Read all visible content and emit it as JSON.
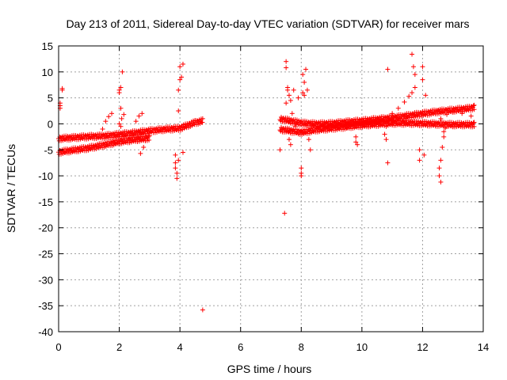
{
  "chart_data": {
    "type": "scatter",
    "title": "Day 213 of 2011, Sidereal Day-to-day VTEC variation (SDTVAR) for receiver mars",
    "xlabel": "GPS time / hours",
    "ylabel": "SDTVAR / TECUs",
    "xlim": [
      0,
      14
    ],
    "ylim": [
      -40,
      15
    ],
    "xticks": [
      0,
      2,
      4,
      6,
      8,
      10,
      12,
      14
    ],
    "yticks": [
      -40,
      -35,
      -30,
      -25,
      -20,
      -15,
      -10,
      -5,
      0,
      5,
      10,
      15
    ],
    "grid": true,
    "marker": "plus",
    "color": "#ff0000",
    "series": [
      {
        "name": "segment-1-band-upper",
        "x": [
          0.0,
          0.5,
          1.0,
          1.5,
          2.0,
          2.5,
          3.0,
          3.5,
          4.0,
          4.5,
          4.75
        ],
        "y": [
          -2.4,
          -2.2,
          -2.0,
          -1.9,
          -1.6,
          -1.3,
          -0.9,
          -0.6,
          -0.4,
          0.7,
          1.0
        ]
      },
      {
        "name": "segment-1-band-lower",
        "x": [
          0.0,
          0.5,
          1.0,
          1.5,
          2.0,
          2.5,
          3.0
        ],
        "y": [
          -5.0,
          -4.6,
          -4.2,
          -3.6,
          -3.0,
          -2.6,
          -2.3
        ]
      },
      {
        "name": "segment-1-arcs",
        "x": [
          1.45,
          1.55,
          1.65,
          1.75,
          2.0,
          2.08,
          2.15,
          2.55,
          2.65,
          2.75
        ],
        "y": [
          -1.0,
          0.5,
          1.4,
          2.0,
          0.0,
          1.0,
          1.8,
          0.5,
          1.5,
          2.0
        ]
      },
      {
        "name": "segment-1-scattered",
        "x": [
          0.05,
          0.05,
          0.05,
          0.12,
          0.12,
          2.0,
          2.0,
          2.05,
          2.05,
          2.05,
          2.1,
          2.8,
          2.7,
          3.85,
          3.85,
          3.85,
          3.9,
          3.9,
          3.95,
          3.95,
          3.95,
          4.0,
          4.05,
          4.0,
          4.1,
          4.1,
          4.75
        ],
        "y": [
          3.0,
          3.5,
          4.0,
          6.5,
          6.8,
          6.0,
          6.5,
          7.0,
          3.0,
          -0.5,
          10.0,
          -4.5,
          -5.7,
          -6.0,
          -7.5,
          -8.5,
          -9.5,
          -10.5,
          -7.0,
          2.5,
          6.5,
          8.5,
          9.0,
          11.0,
          11.5,
          -5.5,
          -35.8
        ]
      },
      {
        "name": "segment-2-band-upper",
        "x": [
          7.3,
          8.0,
          8.5,
          9.0,
          9.5,
          10.0,
          10.5,
          11.0,
          11.5,
          12.0,
          12.5,
          13.0,
          13.5,
          13.7
        ],
        "y": [
          1.4,
          0.6,
          0.4,
          0.5,
          0.8,
          1.0,
          1.3,
          1.6,
          2.0,
          2.4,
          2.8,
          3.1,
          3.4,
          3.6
        ]
      },
      {
        "name": "segment-2-band-lower",
        "x": [
          7.3,
          8.0,
          8.5,
          9.0,
          9.5,
          10.0,
          10.5,
          11.0,
          11.5,
          12.0,
          12.5,
          13.0,
          13.5,
          13.7
        ],
        "y": [
          -0.6,
          -1.2,
          -0.7,
          -0.4,
          -0.1,
          0.2,
          0.4,
          0.6,
          0.6,
          0.5,
          0.4,
          0.3,
          0.3,
          0.3
        ]
      },
      {
        "name": "segment-2-arcs",
        "x": [
          11.0,
          11.2,
          11.4,
          11.55,
          11.65,
          12.6,
          12.8,
          13.0,
          13.3,
          13.6
        ],
        "y": [
          2.0,
          3.0,
          4.2,
          5.3,
          6.0,
          1.0,
          1.8,
          2.4,
          2.0,
          1.5
        ]
      },
      {
        "name": "segment-2-scattered",
        "x": [
          7.3,
          7.45,
          7.5,
          7.5,
          7.5,
          7.55,
          7.55,
          7.6,
          7.6,
          7.65,
          7.65,
          7.7,
          7.75,
          7.8,
          7.9,
          8.0,
          8.0,
          8.0,
          8.05,
          8.05,
          8.1,
          8.1,
          8.15,
          8.2,
          8.25,
          8.3,
          9.8,
          9.8,
          9.85,
          10.75,
          10.8,
          10.85,
          10.85,
          10.8,
          11.65,
          11.7,
          11.75,
          11.75,
          11.9,
          11.9,
          12.0,
          12.0,
          12.05,
          12.1,
          12.55,
          12.55,
          12.6,
          12.6,
          12.65,
          12.7,
          12.7,
          12.75
        ],
        "y": [
          -5.0,
          -17.2,
          12.0,
          10.8,
          4.0,
          7.0,
          6.5,
          5.5,
          -3.0,
          -4.0,
          4.5,
          2.0,
          6.5,
          -0.5,
          5.0,
          -8.5,
          -9.5,
          -10.0,
          6.0,
          9.5,
          8.0,
          5.5,
          10.5,
          6.5,
          -3.0,
          -5.0,
          -2.5,
          -3.5,
          -4.0,
          -2.0,
          -3.0,
          -7.5,
          10.5,
          -0.5,
          13.4,
          11.0,
          9.5,
          7.0,
          -5.0,
          -7.0,
          8.5,
          11.0,
          -6.0,
          5.5,
          -8.5,
          -10.0,
          -11.2,
          -7.0,
          -4.5,
          -1.5,
          -2.5,
          -0.8
        ]
      }
    ]
  }
}
